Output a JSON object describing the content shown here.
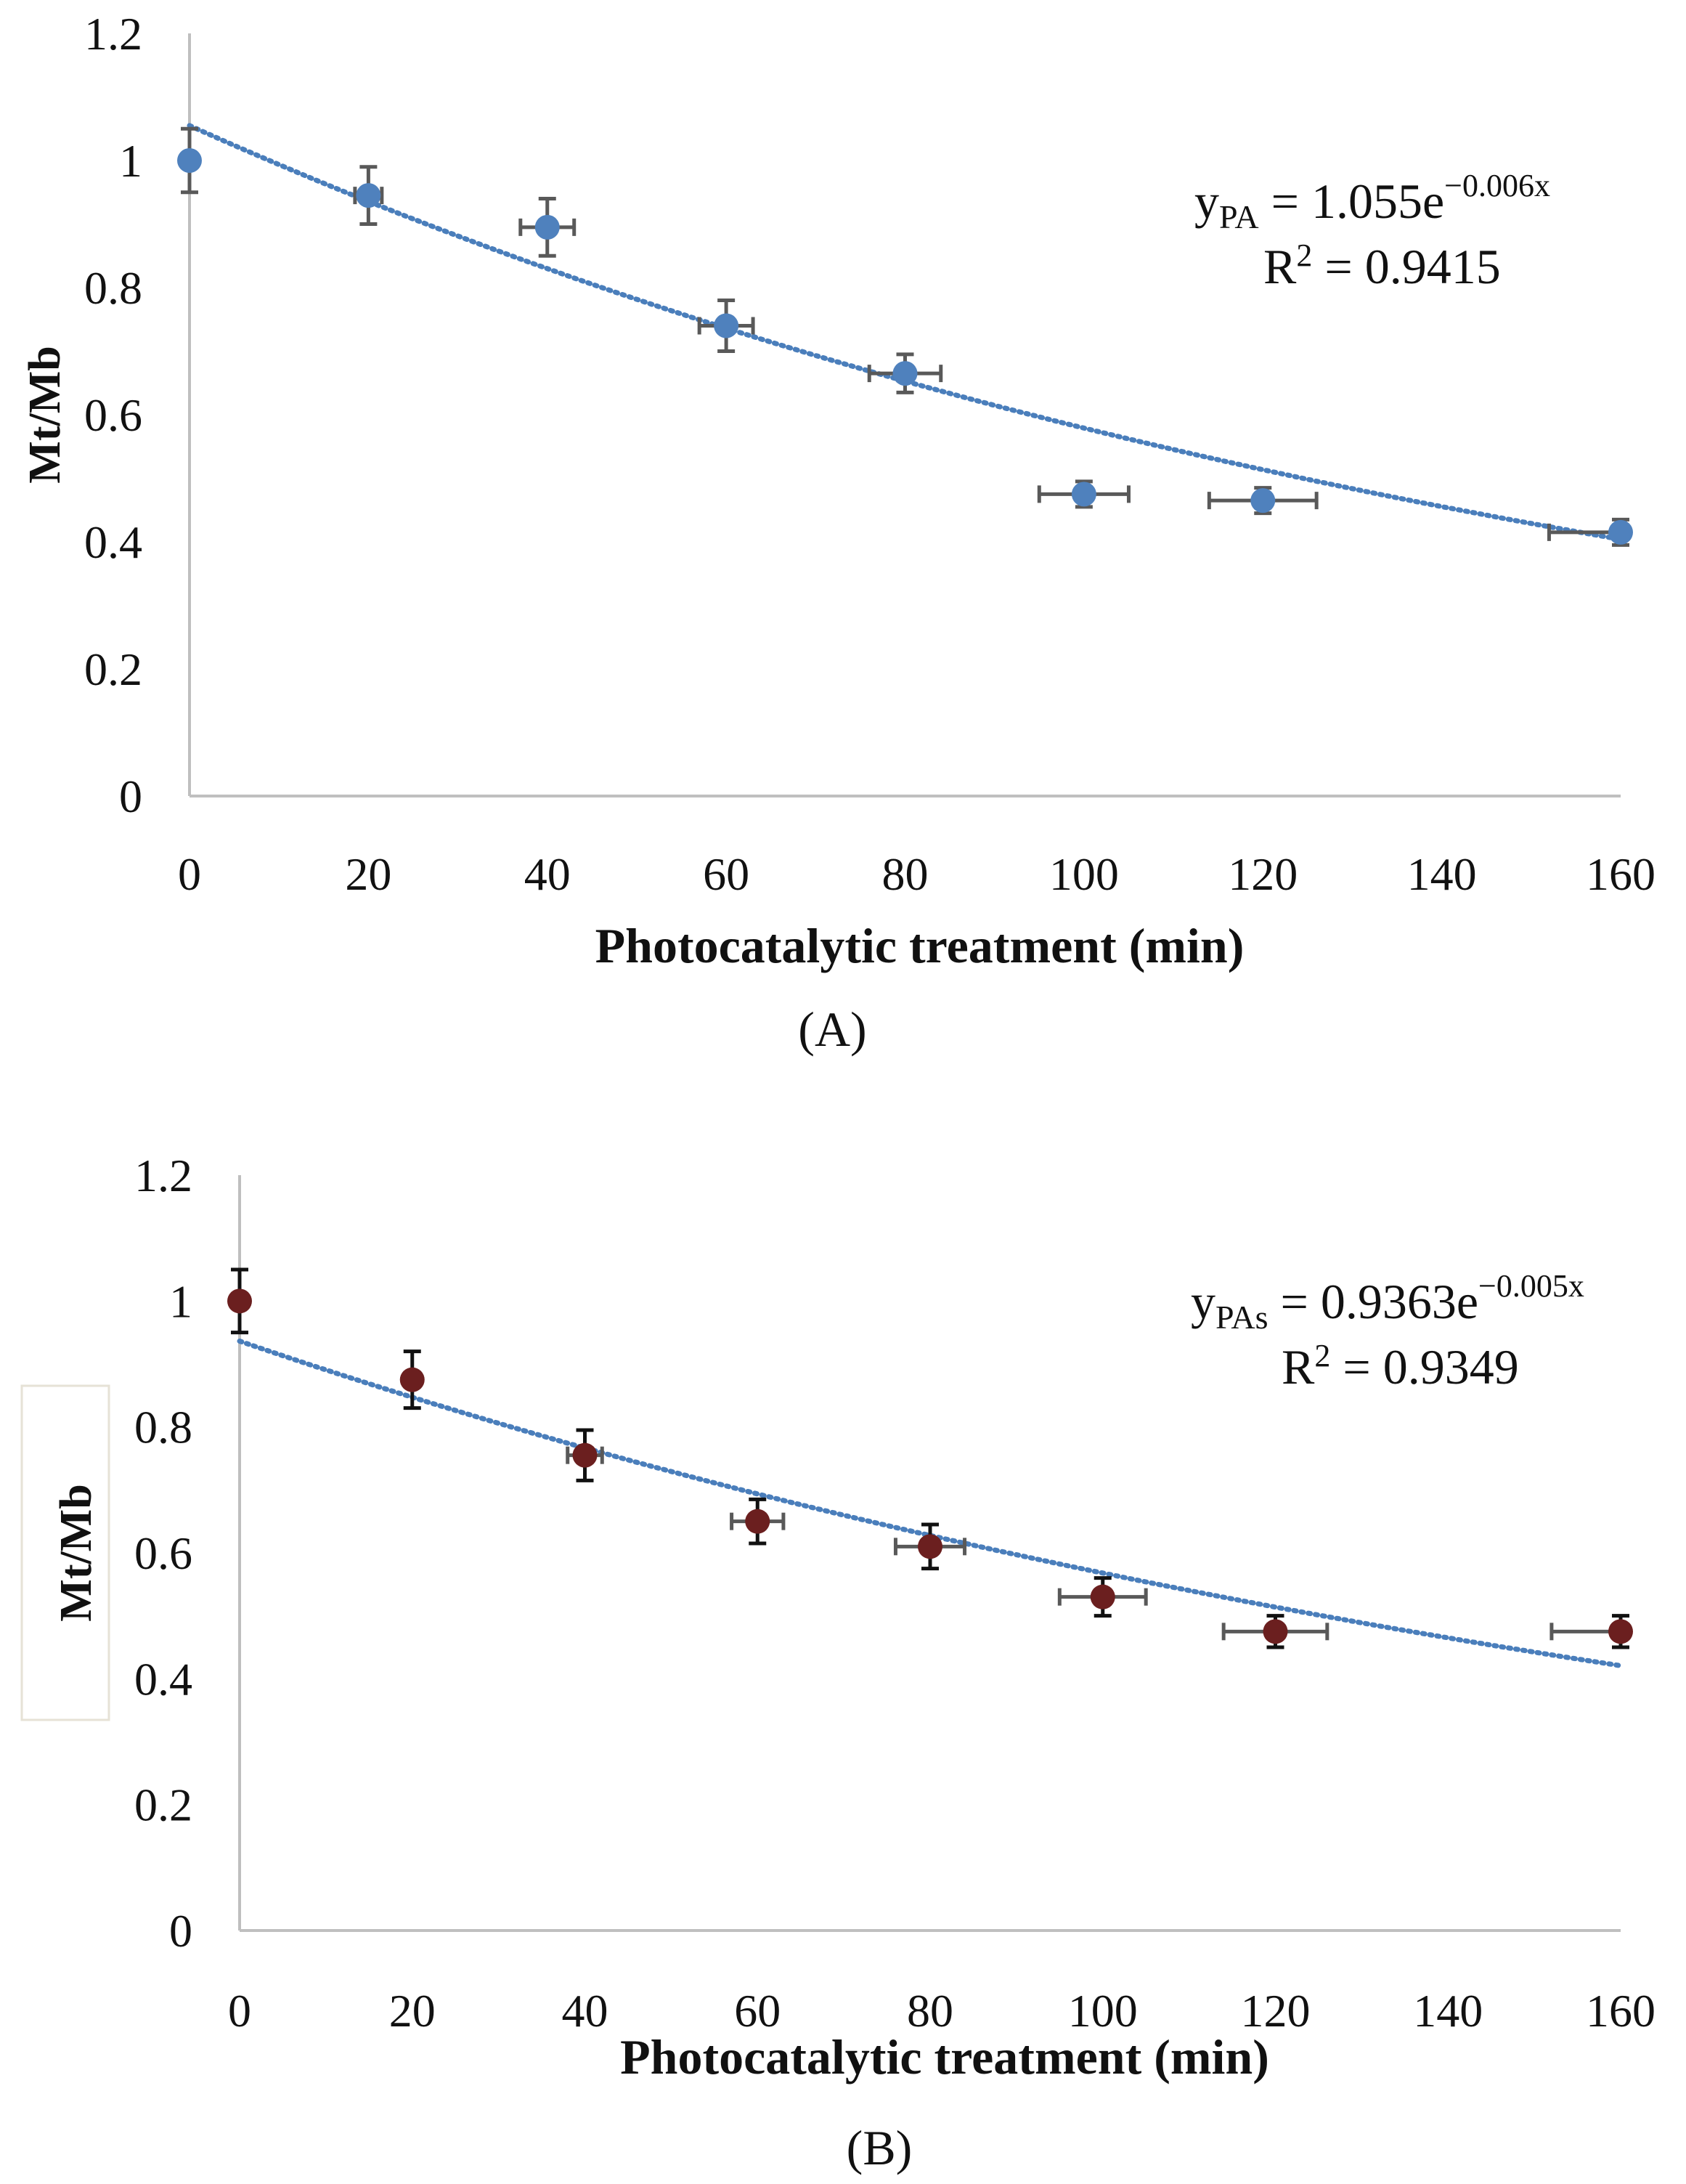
{
  "chart_data": [
    {
      "type": "scatter",
      "panel_label": "(A)",
      "xlabel": "Photocatalytic treatment (min)",
      "ylabel": "Mt/Mb",
      "xlim": [
        0,
        160
      ],
      "ylim": [
        0,
        1.2
      ],
      "xticks": [
        "0",
        "20",
        "40",
        "60",
        "80",
        "100",
        "120",
        "140",
        "160"
      ],
      "yticks": [
        "0",
        "0.2",
        "0.4",
        "0.6",
        "0.8",
        "1",
        "1.2"
      ],
      "marker_color": "#4f81bd",
      "yerr_color": "#595959",
      "x": [
        0,
        20,
        40,
        60,
        80,
        100,
        120,
        160
      ],
      "y": [
        1.0,
        0.945,
        0.895,
        0.74,
        0.665,
        0.475,
        0.465,
        0.415
      ],
      "yerr": [
        0.05,
        0.045,
        0.045,
        0.04,
        0.03,
        0.02,
        0.02,
        0.02
      ],
      "xerr": [
        0,
        1.5,
        3,
        3,
        4,
        5,
        6,
        8
      ],
      "trendline": {
        "type": "exponential",
        "a": 1.055,
        "b": -0.006,
        "color": "#4a7ebb"
      },
      "equation": {
        "y": "y",
        "sub": "PA",
        "rest": " = 1.055e",
        "exp": "−0.006x",
        "r2_label": "R",
        "r2_sup": "2",
        "r2_rest": " = 0.9415"
      }
    },
    {
      "type": "scatter",
      "panel_label": "(B)",
      "xlabel": "Photocatalytic treatment (min)",
      "ylabel": "Mt/Mb",
      "xlim": [
        0,
        160
      ],
      "ylim": [
        0,
        1.2
      ],
      "xticks": [
        "0",
        "20",
        "40",
        "60",
        "80",
        "100",
        "120",
        "140",
        "160"
      ],
      "yticks": [
        "0",
        "0.2",
        "0.4",
        "0.6",
        "0.8",
        "1",
        "1.2"
      ],
      "marker_color": "#6b1f1f",
      "yerr_color": "#111111",
      "x": [
        0,
        20,
        40,
        60,
        80,
        100,
        120,
        160
      ],
      "y": [
        1.0,
        0.875,
        0.755,
        0.65,
        0.61,
        0.53,
        0.475,
        0.475
      ],
      "yerr": [
        0.05,
        0.045,
        0.04,
        0.035,
        0.035,
        0.03,
        0.025,
        0.025
      ],
      "xerr": [
        0,
        0,
        2,
        3,
        4,
        5,
        6,
        8
      ],
      "trendline": {
        "type": "exponential",
        "a": 0.9363,
        "b": -0.005,
        "color": "#4a7ebb"
      },
      "equation": {
        "y": "y",
        "sub": "PAs",
        "rest": " = 0.9363e",
        "exp": "−0.005x",
        "r2_label": "R",
        "r2_sup": "2",
        "r2_rest": " = 0.9349"
      }
    }
  ]
}
